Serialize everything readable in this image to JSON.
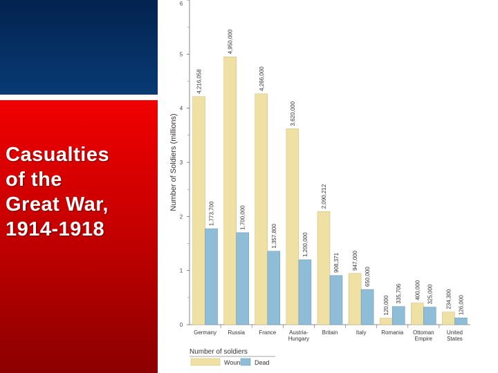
{
  "slide": {
    "title": "Casualties\nof the\nGreat War,\n1914-1918"
  },
  "colors": {
    "wounded": "#efe0a4",
    "dead": "#8fbdd8",
    "top_panel": "#03234f",
    "red_panel": "#d40000"
  },
  "chart_data": {
    "type": "bar",
    "categories": [
      "Germany",
      "Russia",
      "France",
      "Austria-\nHungary",
      "Britain",
      "Italy",
      "Romania",
      "Ottoman\nEmpire",
      "United\nStates"
    ],
    "series": [
      {
        "name": "Wounded",
        "values": [
          4.216058,
          4.95,
          4.266,
          3.62,
          2.090212,
          0.947,
          0.12,
          0.4,
          0.2343
        ],
        "labels": [
          "4,216,058",
          "4,950,000",
          "4,266,000",
          "3,620,000",
          "2,090,212",
          "947,000",
          "120,000",
          "400,000",
          "234,300"
        ]
      },
      {
        "name": "Dead",
        "values": [
          1.7737,
          1.7,
          1.3578,
          1.2,
          0.908371,
          0.65,
          0.335706,
          0.325,
          0.126
        ],
        "labels": [
          "1,773,700",
          "1,700,000",
          "1,357,800",
          "1,200,000",
          "908,371",
          "650,000",
          "335,706",
          "325,000",
          "126,000"
        ]
      }
    ],
    "ylabel": "Number of Soldiers (millions)",
    "xlabel": "",
    "ylim": [
      0,
      6
    ],
    "yticks": [
      "0",
      "1",
      "2",
      "3",
      "4",
      "5",
      "6"
    ],
    "legend": {
      "title": "Number of soldiers",
      "position": "bottom-left"
    },
    "grid": false
  }
}
